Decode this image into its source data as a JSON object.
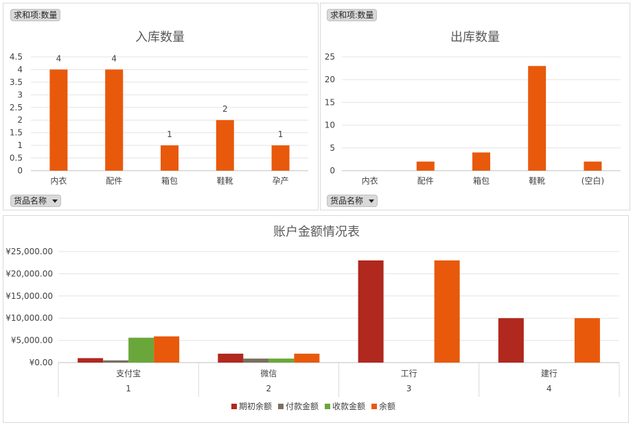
{
  "chart_data": [
    {
      "type": "bar",
      "title": "入库数量",
      "field_button": "求和项:数量",
      "filter_button": "货品名称",
      "categories": [
        "内衣",
        "配件",
        "箱包",
        "鞋靴",
        "孕产"
      ],
      "values": [
        4,
        4,
        1,
        2,
        1
      ],
      "data_labels": [
        "4",
        "4",
        "1",
        "2",
        "1"
      ],
      "ylim": [
        0,
        4.5
      ],
      "yticks": [
        "0",
        "0.5",
        "1",
        "1.5",
        "2",
        "2.5",
        "3",
        "3.5",
        "4",
        "4.5"
      ],
      "grid": true,
      "color": "#e8590c"
    },
    {
      "type": "bar",
      "title": "出库数量",
      "field_button": "求和项:数量",
      "filter_button": "货品名称",
      "categories": [
        "内衣",
        "配件",
        "箱包",
        "鞋靴",
        "(空白)"
      ],
      "values": [
        0,
        2,
        4,
        23,
        2
      ],
      "ylim": [
        0,
        25
      ],
      "yticks": [
        "0",
        "5",
        "10",
        "15",
        "20",
        "25"
      ],
      "grid": true,
      "color": "#e8590c"
    },
    {
      "type": "bar",
      "title": "账户金额情况表",
      "categories": [
        "支付宝",
        "微信",
        "工行",
        "建行"
      ],
      "sub_categories": [
        "1",
        "2",
        "3",
        "4"
      ],
      "series": [
        {
          "name": "期初余额",
          "values": [
            1000,
            2000,
            23000,
            10000
          ],
          "color": "#b0281e"
        },
        {
          "name": "付款金额",
          "values": [
            500,
            900,
            0,
            0
          ],
          "color": "#7a6f5f"
        },
        {
          "name": "收款金额",
          "values": [
            5600,
            900,
            0,
            0
          ],
          "color": "#6aa73a"
        },
        {
          "name": "余额",
          "values": [
            5900,
            2000,
            23000,
            10000
          ],
          "color": "#e8590c"
        }
      ],
      "ylim": [
        0,
        25000
      ],
      "yticks": [
        "¥0.00",
        "¥5,000.00",
        "¥10,000.00",
        "¥15,000.00",
        "¥20,000.00",
        "¥25,000.00"
      ],
      "grid": true,
      "legend": "bottom"
    }
  ]
}
